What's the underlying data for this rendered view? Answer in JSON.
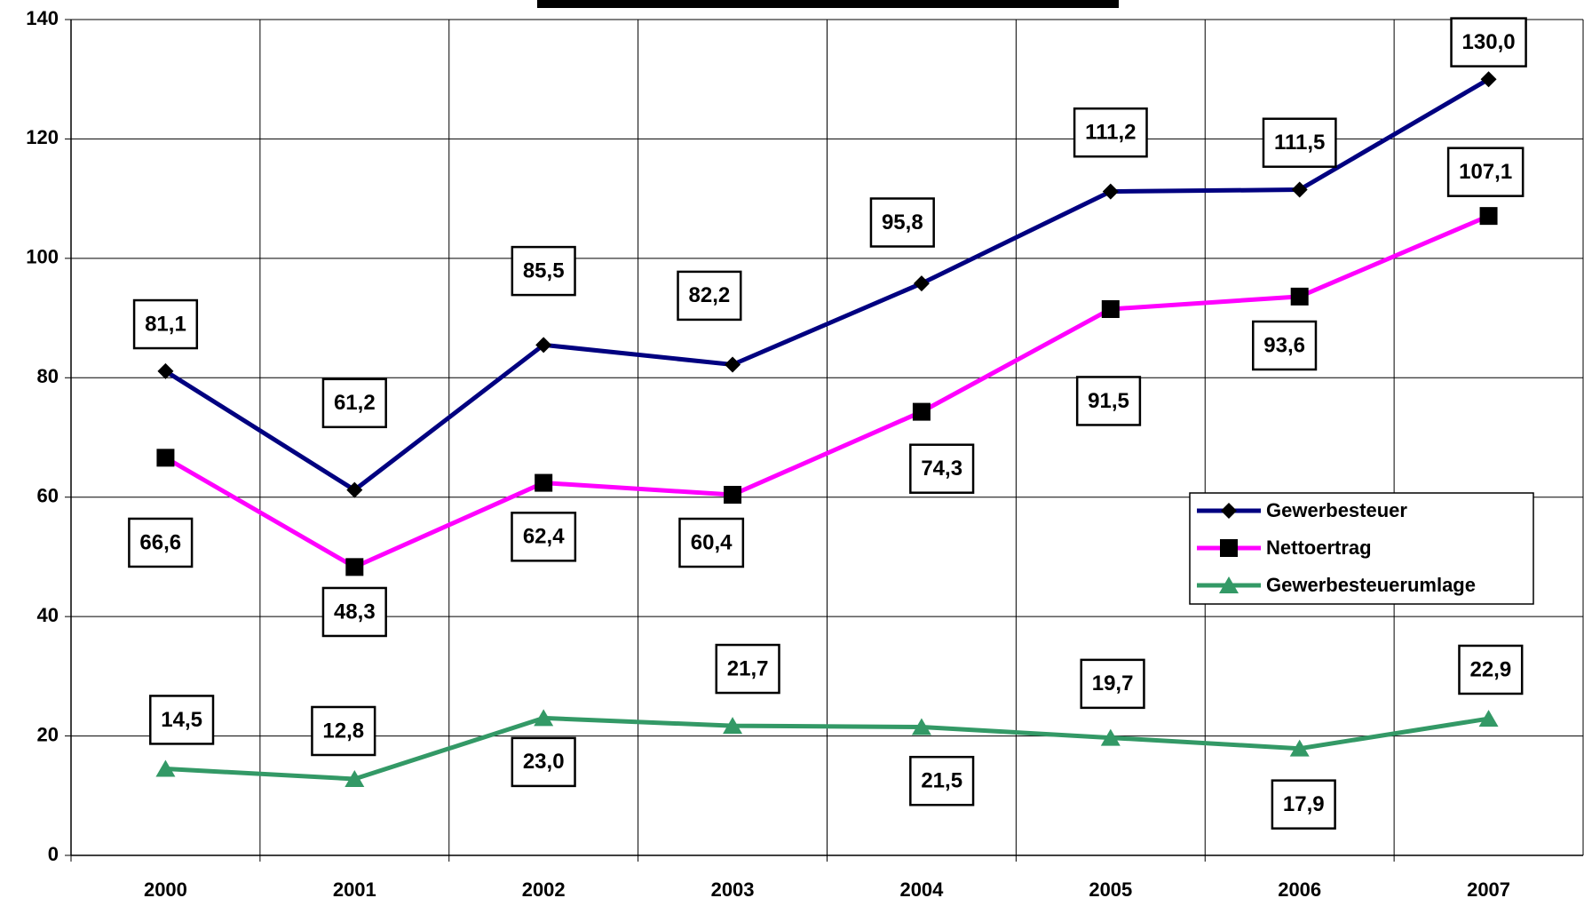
{
  "chart_data": {
    "type": "line",
    "categories": [
      "2000",
      "2001",
      "2002",
      "2003",
      "2004",
      "2005",
      "2006",
      "2007"
    ],
    "series": [
      {
        "name": "Gewerbesteuer",
        "color": "#000080",
        "marker": "diamond",
        "values": [
          81.1,
          61.2,
          85.5,
          82.2,
          95.8,
          111.2,
          111.5,
          130.0
        ],
        "value_labels": [
          "81,1",
          "61,2",
          "85,5",
          "82,2",
          "95,8",
          "111,2",
          "111,5",
          "130,0"
        ]
      },
      {
        "name": "Nettoertrag",
        "color": "#ff00ff",
        "marker": "square",
        "values": [
          66.6,
          48.3,
          62.4,
          60.4,
          74.3,
          91.5,
          93.6,
          107.1
        ],
        "value_labels": [
          "66,6",
          "48,3",
          "62,4",
          "60,4",
          "74,3",
          "91,5",
          "93,6",
          "107,1"
        ]
      },
      {
        "name": "Gewerbesteuerumlage",
        "color": "#339966",
        "marker": "triangle",
        "values": [
          14.5,
          12.8,
          23.0,
          21.7,
          21.5,
          19.7,
          17.9,
          22.9
        ],
        "value_labels": [
          "14,5",
          "12,8",
          "23,0",
          "21,7",
          "21,5",
          "19,7",
          "17,9",
          "22,9"
        ]
      }
    ],
    "ylim": [
      0,
      140
    ],
    "yticks": [
      0,
      20,
      40,
      60,
      80,
      100,
      120,
      140
    ],
    "grid": true,
    "legend": "right"
  }
}
